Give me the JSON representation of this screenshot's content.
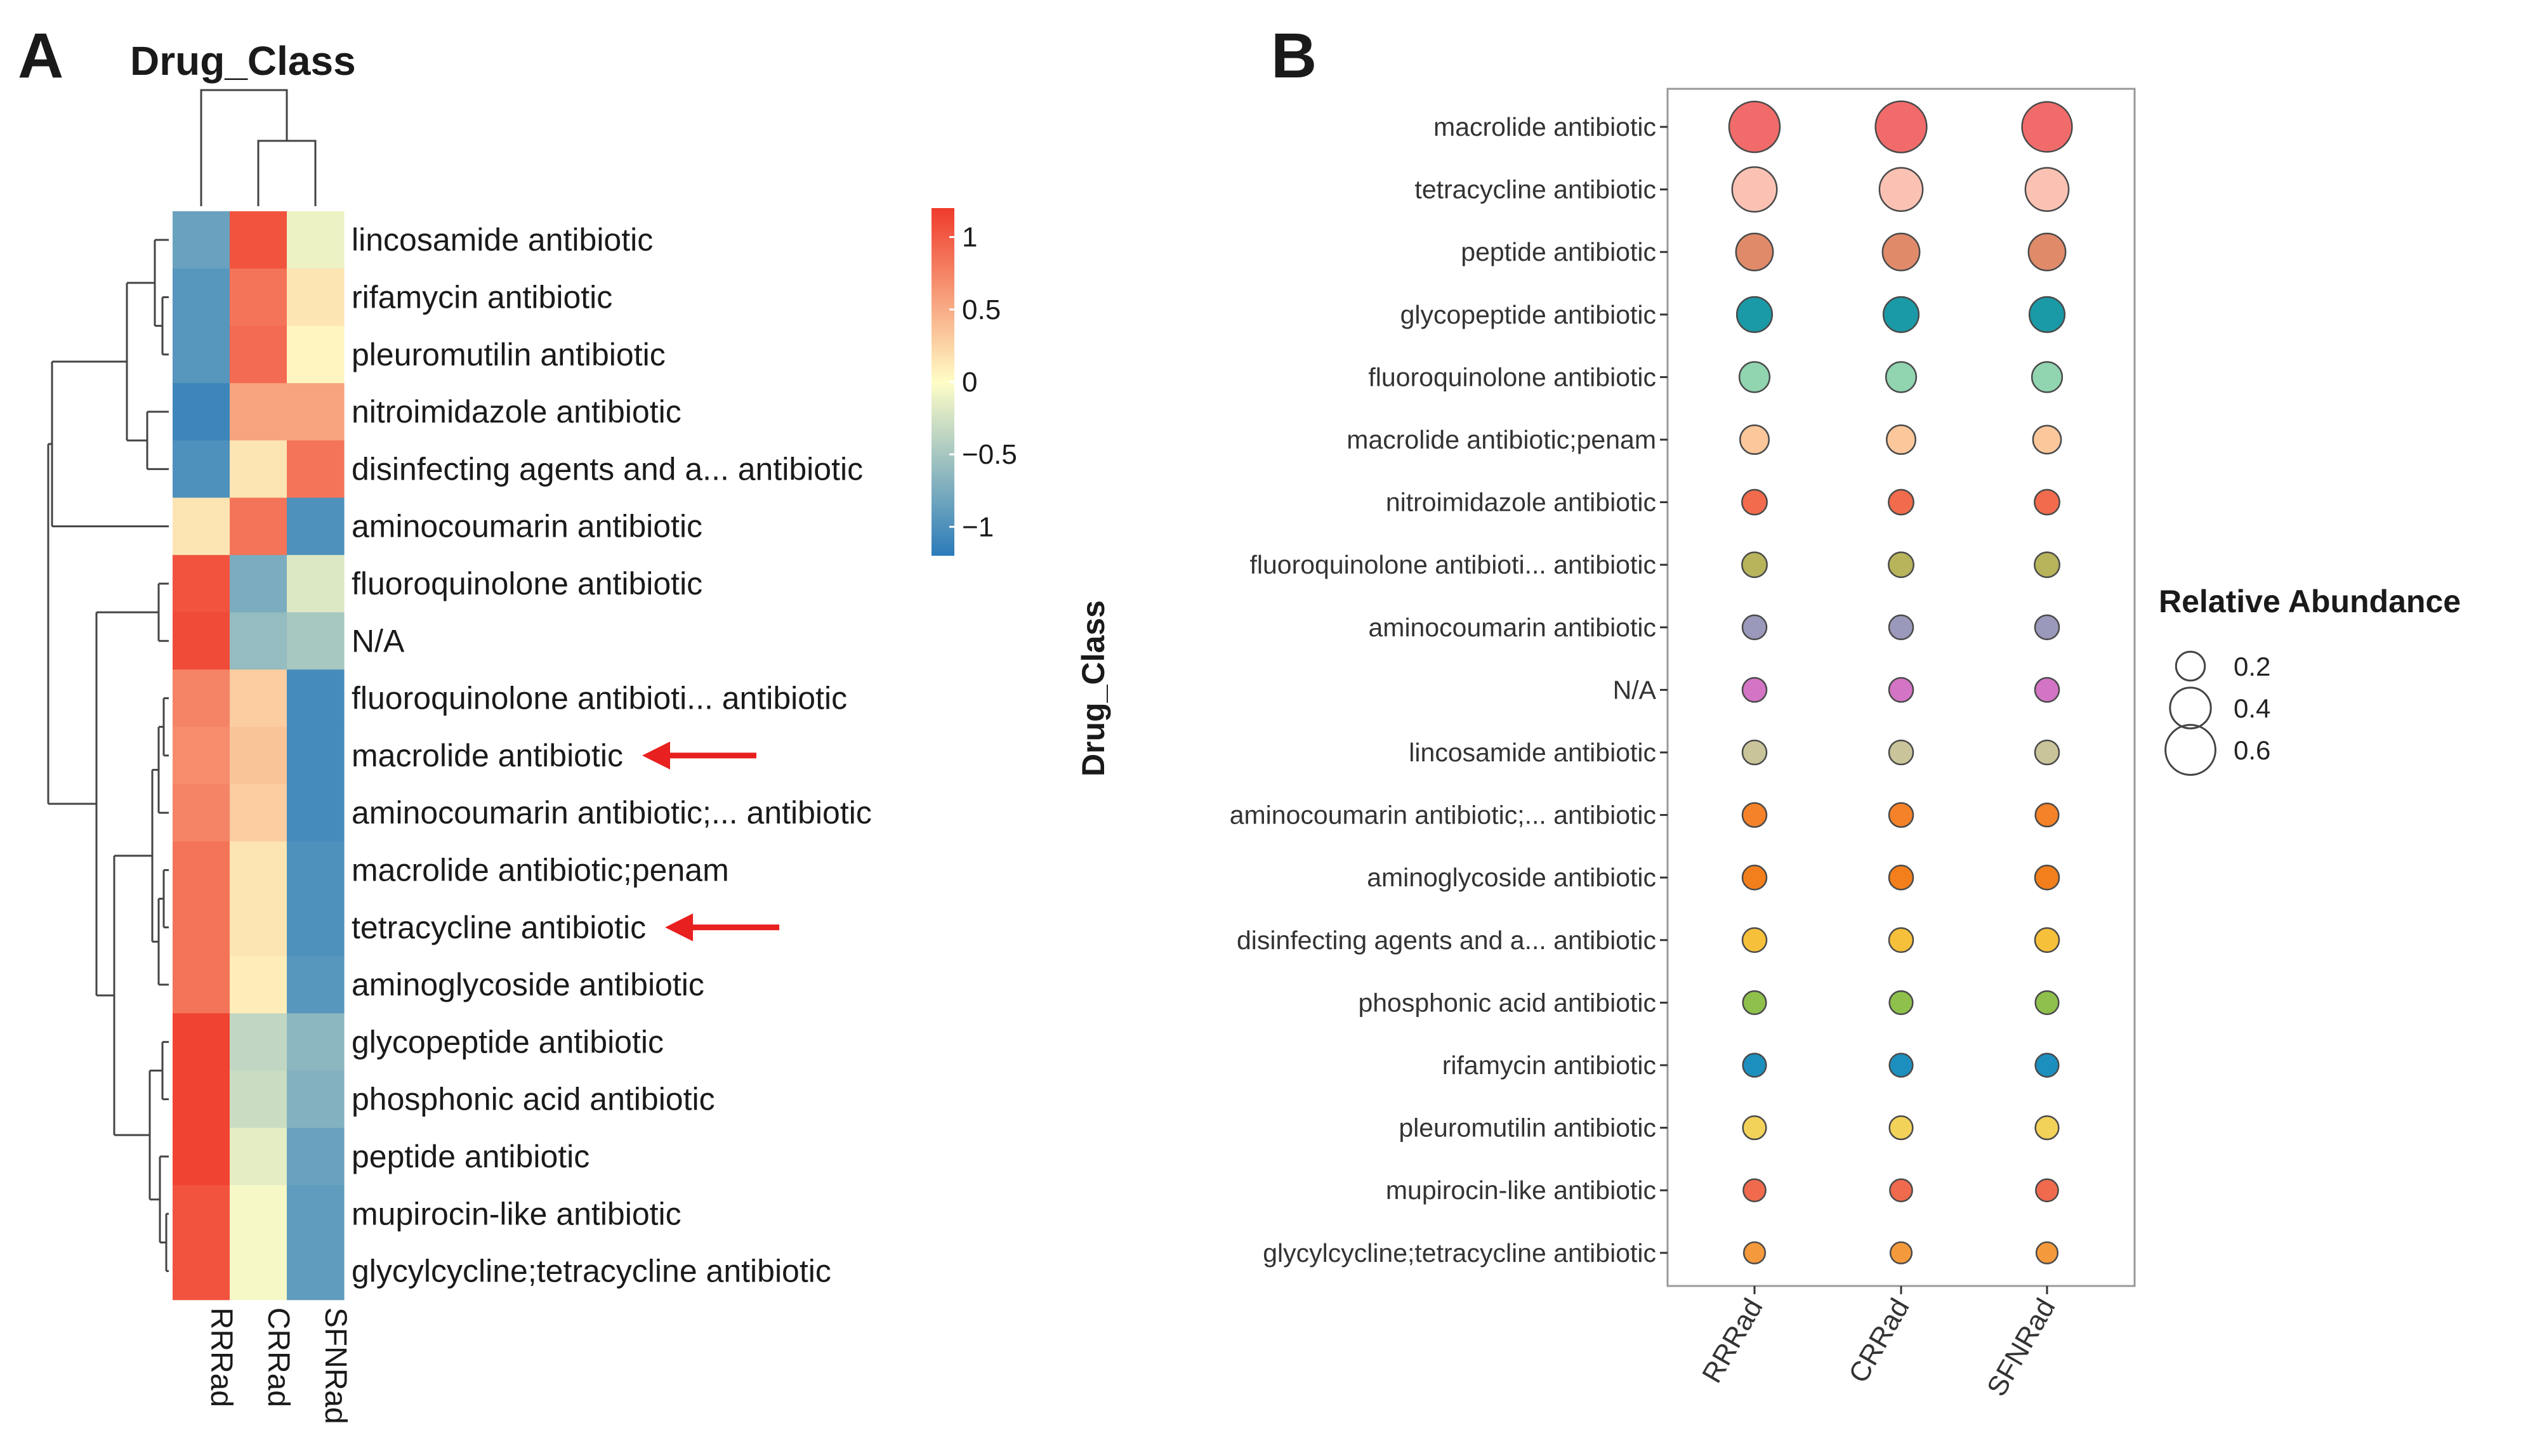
{
  "panelA": {
    "letter": "A",
    "title": "Drug_Class",
    "color_scale": {
      "low": "#2b7bba",
      "mid": "#fffdc6",
      "high": "#ef3b2c",
      "min": -1.2,
      "max": 1.2,
      "ticks": [
        1,
        0.5,
        0,
        -0.5,
        -1
      ],
      "tick_labels": [
        "1",
        "0.5",
        "0",
        "−0.5",
        "−1"
      ]
    },
    "chart_data": {
      "type": "heatmap",
      "columns": [
        "RRRad",
        "CRRad",
        "SFNRad"
      ],
      "rows": [
        "lincosamide antibiotic",
        "rifamycin antibiotic",
        "pleuromutilin antibiotic",
        "nitroimidazole antibiotic",
        "disinfecting agents and a... antibiotic",
        "aminocoumarin antibiotic",
        "fluoroquinolone antibiotic",
        "N/A",
        "fluoroquinolone antibioti... antibiotic",
        "macrolide antibiotic",
        "aminocoumarin antibiotic;... antibiotic",
        "macrolide antibiotic;penam",
        "tetracycline antibiotic",
        "aminoglycoside antibiotic",
        "glycopeptide antibiotic",
        "phosphonic acid antibiotic",
        "peptide antibiotic",
        "mupirocin-like antibiotic",
        "glycylcycline;tetracycline antibiotic"
      ],
      "values": [
        [
          -0.85,
          1.05,
          -0.1
        ],
        [
          -0.95,
          0.85,
          0.15
        ],
        [
          -0.95,
          0.9,
          0.05
        ],
        [
          -1.1,
          0.55,
          0.55
        ],
        [
          -1.0,
          0.15,
          0.85
        ],
        [
          0.15,
          0.85,
          -1.0
        ],
        [
          1.05,
          -0.75,
          -0.2
        ],
        [
          1.1,
          -0.6,
          -0.5
        ],
        [
          0.75,
          0.3,
          -1.05
        ],
        [
          0.7,
          0.35,
          -1.05
        ],
        [
          0.75,
          0.3,
          -1.05
        ],
        [
          0.85,
          0.15,
          -1.0
        ],
        [
          0.85,
          0.15,
          -1.0
        ],
        [
          0.85,
          0.1,
          -0.95
        ],
        [
          1.15,
          -0.35,
          -0.65
        ],
        [
          1.15,
          -0.3,
          -0.7
        ],
        [
          1.15,
          -0.15,
          -0.85
        ],
        [
          1.05,
          -0.05,
          -0.9
        ],
        [
          1.05,
          -0.05,
          -0.9
        ]
      ]
    },
    "arrows": [
      {
        "row": "macrolide antibiotic",
        "color": "#e8201f"
      },
      {
        "row": "tetracycline antibiotic",
        "color": "#e8201f"
      }
    ]
  },
  "panelB": {
    "letter": "B",
    "ylabel": "Drug_Class",
    "legend": {
      "title": "Relative Abundance",
      "sizes": [
        0.2,
        0.4,
        0.6
      ],
      "labels": [
        "0.2",
        "0.4",
        "0.6"
      ]
    },
    "chart_data": {
      "type": "scatter",
      "x": [
        "RRRad",
        "CRRad",
        "SFNRad"
      ],
      "categories": [
        "macrolide antibiotic",
        "tetracycline antibiotic",
        "peptide antibiotic",
        "glycopeptide antibiotic",
        "fluoroquinolone antibiotic",
        "macrolide antibiotic;penam",
        "nitroimidazole antibiotic",
        "fluoroquinolone antibioti... antibiotic",
        "aminocoumarin antibiotic",
        "N/A",
        "lincosamide antibiotic",
        "aminocoumarin antibiotic;... antibiotic",
        "aminoglycoside antibiotic",
        "disinfecting agents and a... antibiotic",
        "phosphonic acid antibiotic",
        "rifamycin antibiotic",
        "pleuromutilin antibiotic",
        "mupirocin-like antibiotic",
        "glycylcycline;tetracycline antibiotic"
      ],
      "colors": [
        "#f26b6b",
        "#fbc2b4",
        "#e08a6a",
        "#1a9aa6",
        "#90d4b0",
        "#fcc79a",
        "#f16b4c",
        "#b8b45c",
        "#9a99bb",
        "#d474c4",
        "#c9c49a",
        "#f58228",
        "#f27f1c",
        "#f7c03a",
        "#8fc04c",
        "#1c8fbf",
        "#f3d25a",
        "#f06a4e",
        "#f59a3c"
      ],
      "values": [
        [
          0.62,
          0.63,
          0.6
        ],
        [
          0.48,
          0.45,
          0.45
        ],
        [
          0.33,
          0.33,
          0.33
        ],
        [
          0.3,
          0.3,
          0.3
        ],
        [
          0.22,
          0.22,
          0.22
        ],
        [
          0.2,
          0.2,
          0.19
        ],
        [
          0.15,
          0.15,
          0.15
        ],
        [
          0.15,
          0.15,
          0.15
        ],
        [
          0.14,
          0.14,
          0.14
        ],
        [
          0.14,
          0.14,
          0.14
        ],
        [
          0.14,
          0.14,
          0.14
        ],
        [
          0.14,
          0.14,
          0.13
        ],
        [
          0.14,
          0.14,
          0.14
        ],
        [
          0.14,
          0.14,
          0.14
        ],
        [
          0.13,
          0.13,
          0.13
        ],
        [
          0.13,
          0.13,
          0.13
        ],
        [
          0.13,
          0.13,
          0.13
        ],
        [
          0.12,
          0.12,
          0.12
        ],
        [
          0.11,
          0.11,
          0.11
        ]
      ]
    }
  }
}
